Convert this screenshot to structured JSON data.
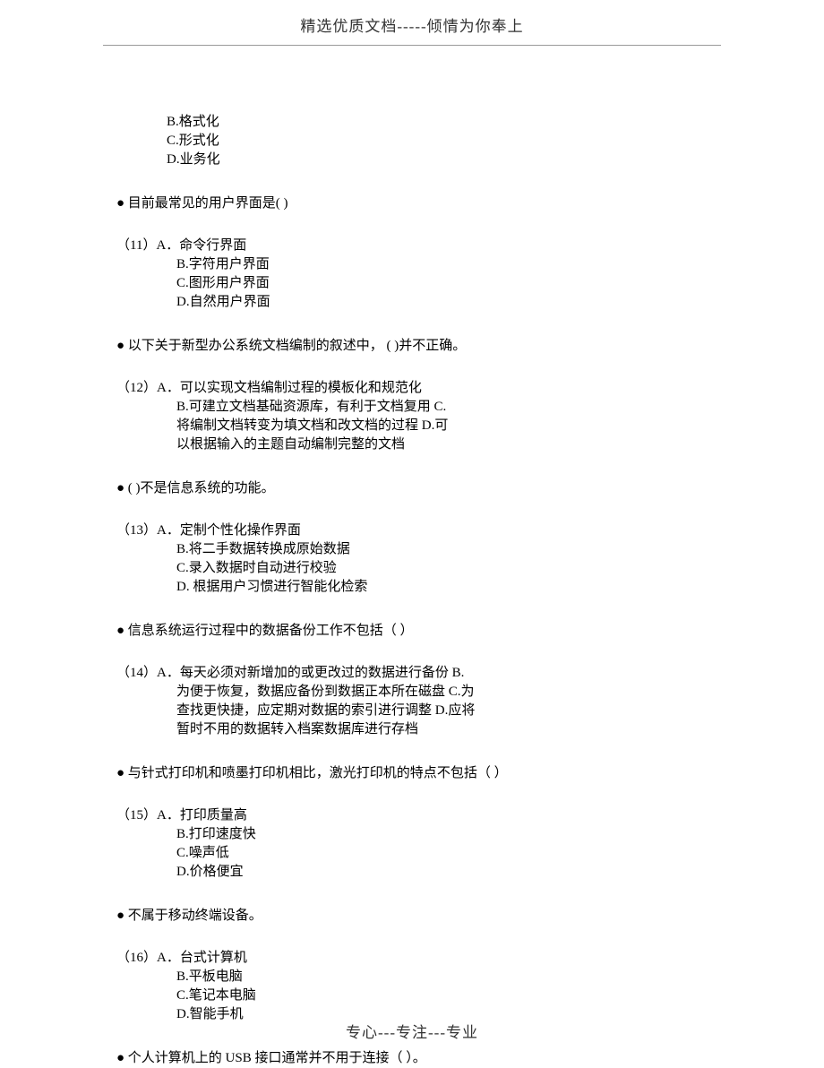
{
  "header": {
    "text": "精选优质文档-----倾情为你奉上"
  },
  "footer": {
    "text": "专心---专注---专业"
  },
  "sections": {
    "top_options": {
      "b": "B.格式化",
      "c": "C.形式化",
      "d": "D.业务化"
    },
    "q11": {
      "question": "● 目前最常见的用户界面是( )",
      "number": "（11）A．",
      "a": "命令行界面",
      "b": "B.字符用户界面",
      "c": "C.图形用户界面",
      "d": "D.自然用户界面"
    },
    "q12": {
      "question": "● 以下关于新型办公系统文档编制的叙述中， ( )并不正确。",
      "number": "（12）A．",
      "line1": "可以实现文档编制过程的模板化和规范化",
      "line2": "B.可建立文档基础资源库，有利于文档复用 C.",
      "line3": "将编制文档转变为填文档和改文档的过程 D.可",
      "line4": "以根据输入的主题自动编制完整的文档"
    },
    "q13": {
      "question": "● ( )不是信息系统的功能。",
      "number": "（13）A．",
      "a": "定制个性化操作界面",
      "b": "B.将二手数据转换成原始数据",
      "c": "C.录入数据时自动进行校验",
      "d": "D. 根据用户习惯进行智能化检索"
    },
    "q14": {
      "question": "● 信息系统运行过程中的数据备份工作不包括（ ）",
      "number": "（14）A．",
      "line1": "每天必须对新增加的或更改过的数据进行备份 B.",
      "line2": "为便于恢复，数据应备份到数据正本所在磁盘 C.为",
      "line3": "查找更快捷，应定期对数据的索引进行调整 D.应将",
      "line4": "暂时不用的数据转入档案数据库进行存档"
    },
    "q15": {
      "question": "● 与针式打印机和喷墨打印机相比，激光打印机的特点不包括（ ）",
      "number": "（15）A．",
      "a": "打印质量高",
      "b": "B.打印速度快",
      "c": "C.噪声低",
      "d": "D.价格便宜"
    },
    "q16": {
      "question": "● 不属于移动终端设备。",
      "number": "（16）A．",
      "a": "台式计算机",
      "b": "B.平板电脑",
      "c": "C.笔记本电脑",
      "d": "D.智能手机"
    },
    "q17": {
      "question": "● 个人计算机上的 USB 接口通常并不用于连接（ ）。"
    }
  }
}
